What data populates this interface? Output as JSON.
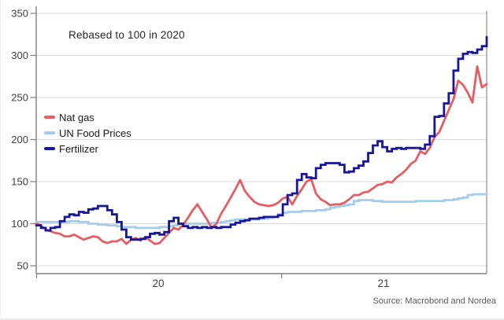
{
  "annotation": "Rebased to 100 in 2020",
  "source_note": "Source: Macrobond and Nordea",
  "legend": [
    {
      "label": "Nat gas",
      "color": "#e65d62"
    },
    {
      "label": "UN Food Prices",
      "color": "#a5cdeb"
    },
    {
      "label": "Fertilizer",
      "color": "#17179a"
    }
  ],
  "x_axis": {
    "labels": [
      "20",
      "21"
    ],
    "year_ticks": [
      2020,
      2021
    ]
  },
  "y_axis": {
    "ticks": [
      50,
      100,
      150,
      200,
      250,
      300,
      350
    ]
  },
  "colors": {
    "grid": "#d9d9d9",
    "axis": "#7f7f7f",
    "right_border": "#8c8c8c",
    "tick_text": "#404040",
    "background": "#ffffff"
  },
  "chart_data": {
    "type": "line",
    "title": "Rebased to 100 in 2020",
    "xlabel": "",
    "ylabel": "",
    "ylim": [
      50,
      350
    ],
    "grid": "horizontal",
    "legend_position": "middle-left",
    "x_start_year": 2020.0,
    "x_end_year": 2021.86,
    "x_step": "1 week per point, starting Jan 2020",
    "y_ticks": [
      50,
      100,
      150,
      200,
      250,
      300,
      350
    ],
    "x_tick_labels": [
      "20",
      "21"
    ],
    "series": [
      {
        "name": "Nat gas",
        "color": "#e65d62",
        "style": "linear",
        "z": 1,
        "values": [
          100,
          98,
          93,
          91,
          89,
          88,
          85,
          85,
          87,
          84,
          81,
          83,
          85,
          84,
          79,
          77,
          79,
          79,
          82,
          76,
          81,
          83,
          80,
          84,
          80,
          76,
          77,
          83,
          89,
          95,
          93,
          99,
          107,
          116,
          123,
          114,
          105,
          95,
          100,
          112,
          121,
          131,
          141,
          152,
          139,
          132,
          126,
          123,
          122,
          121,
          122,
          125,
          130,
          132,
          123,
          133,
          141,
          150,
          153,
          136,
          129,
          126,
          122,
          123,
          123,
          125,
          129,
          134,
          134,
          137,
          138,
          142,
          146,
          147,
          150,
          149,
          155,
          159,
          164,
          171,
          175,
          186,
          183,
          190,
          203,
          209,
          222,
          235,
          248,
          270,
          265,
          256,
          244,
          287,
          262,
          266
        ]
      },
      {
        "name": "UN Food Prices",
        "color": "#a5cdeb",
        "style": "step",
        "z": 0,
        "values": [
          102,
          102,
          102,
          102,
          102,
          102,
          102,
          103,
          103,
          102,
          102,
          100,
          100,
          99,
          99,
          98,
          98,
          97,
          96,
          96,
          96,
          95,
          95,
          95,
          95,
          95,
          96,
          96,
          97,
          98,
          100,
          100,
          100,
          100,
          100,
          100,
          100,
          101,
          101,
          102,
          103,
          104,
          105,
          105,
          105,
          105,
          105,
          106,
          106,
          107,
          108,
          111,
          113,
          114,
          114,
          114,
          115,
          115,
          115,
          116,
          116,
          117,
          119,
          120,
          121,
          122,
          123,
          127,
          128,
          128,
          128,
          127,
          127,
          126,
          126,
          126,
          126,
          126,
          126,
          126,
          127,
          127,
          127,
          127,
          127,
          127,
          128,
          128,
          129,
          130,
          131,
          134,
          135,
          135,
          135,
          136
        ]
      },
      {
        "name": "Fertilizer",
        "color": "#17179a",
        "style": "step",
        "z": 2,
        "values": [
          98,
          95,
          92,
          95,
          96,
          103,
          108,
          111,
          110,
          114,
          113,
          117,
          118,
          121,
          121,
          116,
          111,
          102,
          93,
          84,
          81,
          81,
          82,
          84,
          88,
          89,
          87,
          90,
          103,
          107,
          100,
          97,
          95,
          96,
          95,
          96,
          95,
          96,
          95,
          96,
          96,
          99,
          101,
          103,
          104,
          106,
          106,
          107,
          108,
          108,
          108,
          110,
          123,
          134,
          136,
          152,
          159,
          155,
          154,
          166,
          170,
          172,
          172,
          172,
          170,
          161,
          162,
          166,
          169,
          174,
          184,
          193,
          198,
          191,
          186,
          189,
          190,
          189,
          190,
          190,
          190,
          189,
          194,
          204,
          227,
          228,
          243,
          255,
          282,
          296,
          302,
          304,
          303,
          307,
          311,
          322
        ]
      }
    ]
  }
}
